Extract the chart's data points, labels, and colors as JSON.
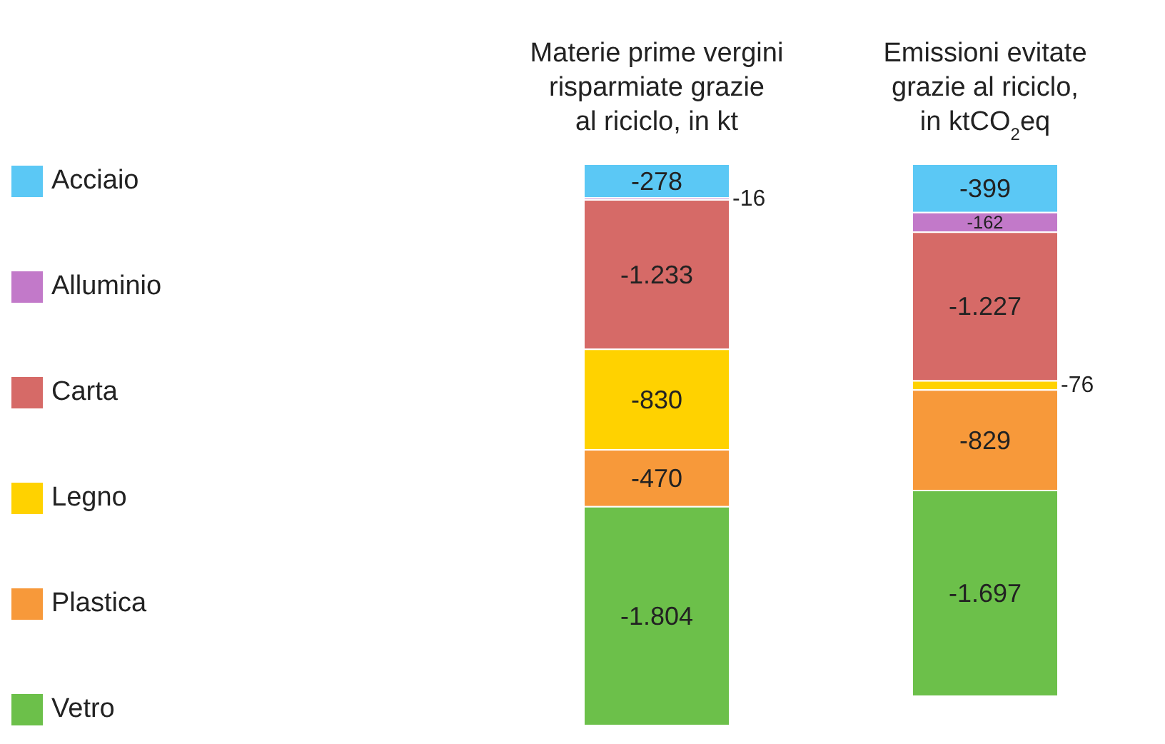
{
  "chart_data": {
    "type": "bar",
    "stacked": true,
    "categories": [
      "Materie prime vergini\nrisparmiate grazie\nal riciclo, in kt",
      "Emissioni evitate\ngrazie al riciclo,\nin ktCO$_{2}$eq"
    ],
    "series": [
      {
        "name": "Acciaio",
        "color": "#5bc8f5",
        "values": [
          -278,
          -399
        ],
        "value_labels": [
          "-278",
          "-399"
        ]
      },
      {
        "name": "Alluminio",
        "color": "#c279c9",
        "values": [
          -16,
          -162
        ],
        "value_labels": [
          "-16",
          "-162"
        ]
      },
      {
        "name": "Carta",
        "color": "#d66a67",
        "values": [
          -1233,
          -1227
        ],
        "value_labels": [
          "-1.233",
          "-1.227"
        ]
      },
      {
        "name": "Legno",
        "color": "#ffd200",
        "values": [
          -830,
          -76
        ],
        "value_labels": [
          "-830",
          "-76"
        ]
      },
      {
        "name": "Plastica",
        "color": "#f7993a",
        "values": [
          -470,
          -829
        ],
        "value_labels": [
          "-470",
          "-829"
        ]
      },
      {
        "name": "Vetro",
        "color": "#6cc04a",
        "values": [
          -1804,
          -1697
        ],
        "value_labels": [
          "-1.804",
          "-1.697"
        ]
      }
    ],
    "legend": "left"
  }
}
